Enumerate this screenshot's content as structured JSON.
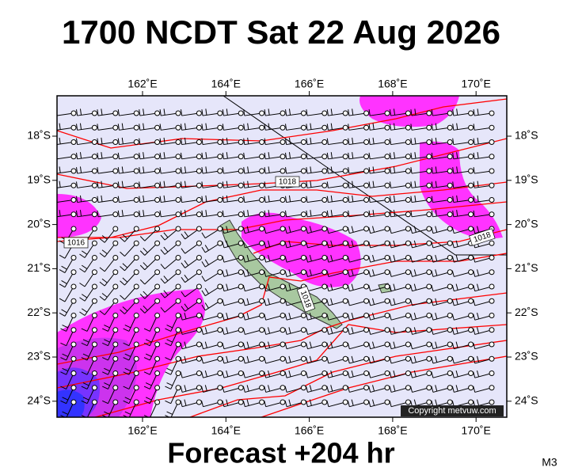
{
  "header": {
    "title": "1700 NCDT Sat 22 Aug 2026"
  },
  "map": {
    "lon_labels": [
      "162˚E",
      "164˚E",
      "166˚E",
      "168˚E",
      "170˚E"
    ],
    "lat_labels": [
      "18˚S",
      "19˚S",
      "20˚S",
      "21˚S",
      "22˚S",
      "23˚S",
      "24˚S"
    ],
    "isobar_labels": [
      "1018",
      "1016",
      "1018",
      "1018"
    ],
    "copyright": "Copyright metvuw.com"
  },
  "footer": {
    "forecast": "Forecast +204 hr",
    "model": "M3"
  }
}
